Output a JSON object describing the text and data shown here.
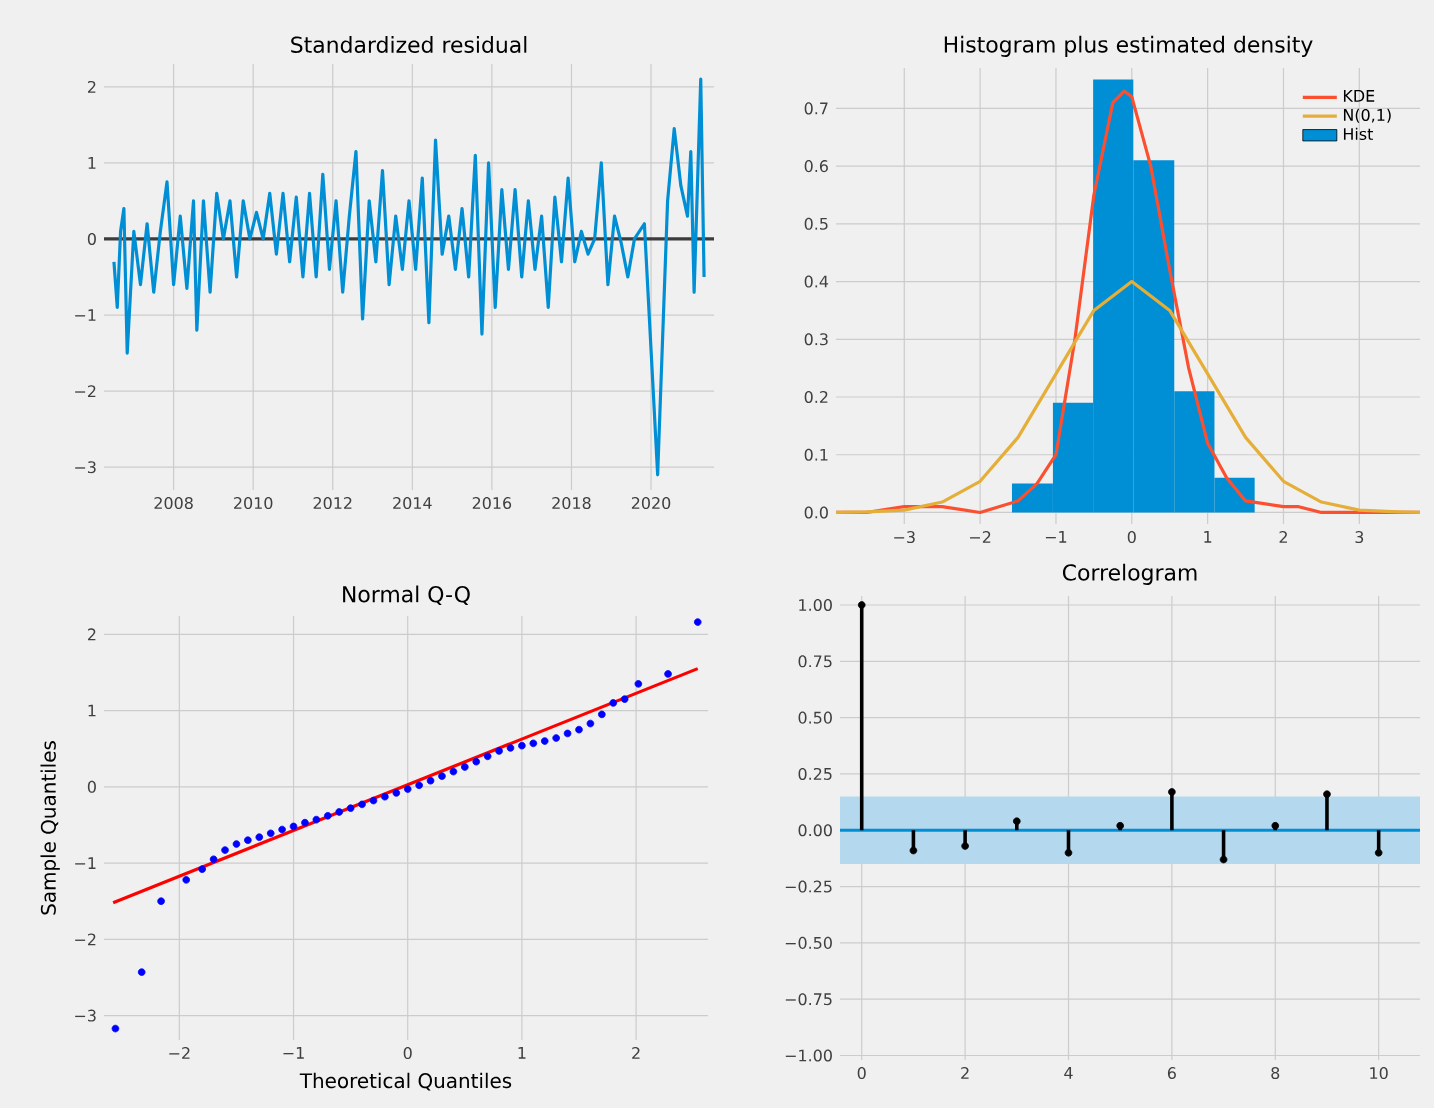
{
  "chart_data": [
    {
      "type": "line",
      "title": "Standardized residual",
      "xlim": [
        "2006-04",
        "2021-08"
      ],
      "ylim": [
        -3.3,
        2.3
      ],
      "grid": true,
      "xticks": [
        "2008",
        "2010",
        "2012",
        "2014",
        "2016",
        "2018",
        "2020"
      ],
      "yticks": [
        {
          "value": -3,
          "label": "−3"
        },
        {
          "value": -2,
          "label": "−2"
        },
        {
          "value": -1,
          "label": "−1"
        },
        0,
        1,
        2
      ],
      "ref_lines": [
        {
          "axis": "y",
          "value": 0,
          "color": "#3c3c3c"
        }
      ],
      "series": [
        {
          "color": "#008fd5",
          "x": [
            "2006-07",
            "2006-08",
            "2006-09",
            "2006-10",
            "2006-11",
            "2007-01",
            "2007-03",
            "2007-05",
            "2007-07",
            "2007-09",
            "2007-11",
            "2008-01",
            "2008-03",
            "2008-05",
            "2008-07",
            "2008-08",
            "2008-10",
            "2008-12",
            "2009-02",
            "2009-04",
            "2009-06",
            "2009-08",
            "2009-10",
            "2009-12",
            "2010-02",
            "2010-04",
            "2010-06",
            "2010-08",
            "2010-10",
            "2010-12",
            "2011-02",
            "2011-04",
            "2011-06",
            "2011-08",
            "2011-10",
            "2011-12",
            "2012-02",
            "2012-04",
            "2012-06",
            "2012-08",
            "2012-10",
            "2012-12",
            "2013-02",
            "2013-04",
            "2013-06",
            "2013-08",
            "2013-10",
            "2013-12",
            "2014-02",
            "2014-04",
            "2014-06",
            "2014-08",
            "2014-10",
            "2014-12",
            "2015-02",
            "2015-04",
            "2015-06",
            "2015-08",
            "2015-10",
            "2015-12",
            "2016-02",
            "2016-04",
            "2016-06",
            "2016-08",
            "2016-10",
            "2016-12",
            "2017-02",
            "2017-04",
            "2017-06",
            "2017-08",
            "2017-10",
            "2017-12",
            "2018-02",
            "2018-04",
            "2018-06",
            "2018-08",
            "2018-10",
            "2018-12",
            "2019-02",
            "2019-04",
            "2019-06",
            "2019-08",
            "2019-11",
            "2020-03",
            "2020-06",
            "2020-08",
            "2020-10",
            "2020-12",
            "2021-01",
            "2021-02",
            "2021-04",
            "2021-05"
          ],
          "values": [
            -0.3,
            -0.9,
            0.1,
            0.4,
            -1.5,
            0.1,
            -0.6,
            0.2,
            -0.7,
            0.1,
            0.75,
            -0.6,
            0.3,
            -0.65,
            0.5,
            -1.2,
            0.5,
            -0.7,
            0.6,
            0.0,
            0.5,
            -0.5,
            0.5,
            0.0,
            0.35,
            0.0,
            0.6,
            -0.2,
            0.6,
            -0.3,
            0.55,
            -0.5,
            0.6,
            -0.5,
            0.85,
            -0.4,
            0.5,
            -0.7,
            0.3,
            1.15,
            -1.05,
            0.5,
            -0.3,
            0.9,
            -0.6,
            0.3,
            -0.4,
            0.5,
            -0.4,
            0.8,
            -1.1,
            1.3,
            -0.2,
            0.3,
            -0.4,
            0.4,
            -0.5,
            1.1,
            -1.25,
            1.0,
            -0.9,
            0.65,
            -0.4,
            0.65,
            -0.5,
            0.5,
            -0.4,
            0.3,
            -0.9,
            0.55,
            -0.3,
            0.8,
            -0.3,
            0.1,
            -0.2,
            0.0,
            1.0,
            -0.6,
            0.3,
            -0.05,
            -0.5,
            0.0,
            0.2,
            -3.1,
            0.5,
            1.45,
            0.7,
            0.3,
            1.15,
            -0.7,
            2.1,
            -0.5
          ]
        }
      ]
    },
    {
      "type": "histogram",
      "title": "Histogram plus estimated density",
      "xlim": [
        -3.9,
        3.8
      ],
      "ylim": [
        -0.02,
        0.77
      ],
      "grid": true,
      "legend": "top right",
      "xticks": [
        {
          "value": -3,
          "label": "−3"
        },
        {
          "value": -2,
          "label": "−2"
        },
        {
          "value": -1,
          "label": "−1"
        },
        0,
        1,
        2,
        3
      ],
      "yticks": [
        {
          "value": 0,
          "label": "0.0"
        },
        0.1,
        0.2,
        0.3,
        0.4,
        0.5,
        0.6,
        0.7
      ],
      "bins": [
        -1.58,
        -1.04,
        -0.51,
        0.02,
        0.56,
        1.09,
        1.62
      ],
      "series": [
        {
          "name": "KDE",
          "type": "line",
          "color": "#fc4f30",
          "x": [
            -3.9,
            -3.5,
            -3.0,
            -2.5,
            -2.0,
            -1.5,
            -1.25,
            -1.0,
            -0.75,
            -0.5,
            -0.25,
            -0.1,
            0.0,
            0.25,
            0.5,
            0.75,
            1.0,
            1.25,
            1.5,
            2.0,
            2.2,
            2.5,
            3.0,
            3.8
          ],
          "values": [
            0.0,
            0.0,
            0.01,
            0.01,
            0.0,
            0.02,
            0.05,
            0.1,
            0.3,
            0.55,
            0.71,
            0.73,
            0.72,
            0.6,
            0.42,
            0.25,
            0.12,
            0.06,
            0.02,
            0.01,
            0.01,
            0.0,
            0.0,
            0.0
          ]
        },
        {
          "name": "N(0,1)",
          "type": "line",
          "color": "#e5ae38",
          "x": [
            -3.9,
            -3.5,
            -3.0,
            -2.5,
            -2.0,
            -1.5,
            -1.0,
            -0.5,
            0.0,
            0.5,
            1.0,
            1.5,
            2.0,
            2.5,
            3.0,
            3.5,
            3.8
          ],
          "values": [
            0.0,
            0.001,
            0.004,
            0.018,
            0.054,
            0.13,
            0.24,
            0.35,
            0.4,
            0.35,
            0.24,
            0.13,
            0.054,
            0.018,
            0.004,
            0.001,
            0.0
          ]
        },
        {
          "name": "Hist",
          "type": "histogram",
          "color": "#008fd5",
          "values": [
            0.05,
            0.19,
            0.75,
            0.61,
            0.21,
            0.06
          ]
        }
      ]
    },
    {
      "type": "scatter",
      "title": "Normal Q-Q",
      "xlabel": "Theoretical Quantiles",
      "ylabel": "Sample Quantiles",
      "xlim": [
        -2.66,
        2.63
      ],
      "ylim": [
        -3.32,
        2.24
      ],
      "grid": true,
      "xticks": [
        {
          "value": -2,
          "label": "−2"
        },
        {
          "value": -1,
          "label": "−1"
        },
        0,
        1,
        2
      ],
      "yticks": [
        {
          "value": -3,
          "label": "−3"
        },
        {
          "value": -2,
          "label": "−2"
        },
        {
          "value": -1,
          "label": "−1"
        },
        0,
        1,
        2
      ],
      "series": [
        {
          "type": "scatter",
          "marker": "circle",
          "color": "#0000ff",
          "x": [
            -2.56,
            -2.33,
            -2.16,
            -1.94,
            -1.8,
            -1.7,
            -1.6,
            -1.5,
            -1.4,
            -1.3,
            -1.2,
            -1.1,
            -1.0,
            -0.9,
            -0.8,
            -0.7,
            -0.6,
            -0.5,
            -0.4,
            -0.3,
            -0.2,
            -0.1,
            0.0,
            0.1,
            0.2,
            0.3,
            0.4,
            0.5,
            0.6,
            0.7,
            0.8,
            0.9,
            1.0,
            1.1,
            1.2,
            1.3,
            1.4,
            1.5,
            1.6,
            1.7,
            1.8,
            1.9,
            2.02,
            2.28,
            2.54
          ],
          "values": [
            -3.17,
            -2.43,
            -1.5,
            -1.22,
            -1.08,
            -0.95,
            -0.83,
            -0.75,
            -0.7,
            -0.66,
            -0.61,
            -0.56,
            -0.52,
            -0.47,
            -0.43,
            -0.38,
            -0.33,
            -0.28,
            -0.23,
            -0.18,
            -0.13,
            -0.08,
            -0.03,
            0.02,
            0.08,
            0.14,
            0.2,
            0.26,
            0.33,
            0.4,
            0.47,
            0.51,
            0.54,
            0.57,
            0.6,
            0.64,
            0.7,
            0.75,
            0.83,
            0.95,
            1.1,
            1.15,
            1.35,
            1.48,
            2.16
          ]
        },
        {
          "type": "line",
          "color": "#ff0000",
          "x": [
            -2.58,
            2.54
          ],
          "values": [
            -1.52,
            1.55
          ]
        }
      ]
    },
    {
      "type": "lollipop",
      "title": "Correlogram",
      "xlim": [
        -0.42,
        10.8
      ],
      "ylim": [
        -1.02,
        1.04
      ],
      "grid": true,
      "marker": "circle",
      "xticks": [
        0,
        2,
        4,
        6,
        8,
        10
      ],
      "yticks": [
        {
          "value": -1,
          "label": "−1.00"
        },
        {
          "value": -0.75,
          "label": "−0.75"
        },
        {
          "value": -0.5,
          "label": "−0.50"
        },
        {
          "value": -0.25,
          "label": "−0.25"
        },
        {
          "value": 0,
          "label": "0.00"
        },
        {
          "value": 0.25,
          "label": "0.25"
        },
        {
          "value": 0.5,
          "label": "0.50"
        },
        {
          "value": 0.75,
          "label": "0.75"
        },
        {
          "value": 1,
          "label": "1.00"
        }
      ],
      "bands": [
        {
          "axis": "y",
          "from": -0.15,
          "to": 0.15,
          "color": "#b4d9ee"
        }
      ],
      "ref_lines": [
        {
          "axis": "y",
          "value": 0,
          "color": "#008fd5"
        }
      ],
      "x": [
        0,
        1,
        2,
        3,
        4,
        5,
        6,
        7,
        8,
        9,
        10
      ],
      "values": [
        1.0,
        -0.09,
        -0.07,
        0.04,
        -0.1,
        0.02,
        0.17,
        -0.13,
        0.02,
        0.16,
        -0.1
      ],
      "color": "#000000"
    }
  ]
}
